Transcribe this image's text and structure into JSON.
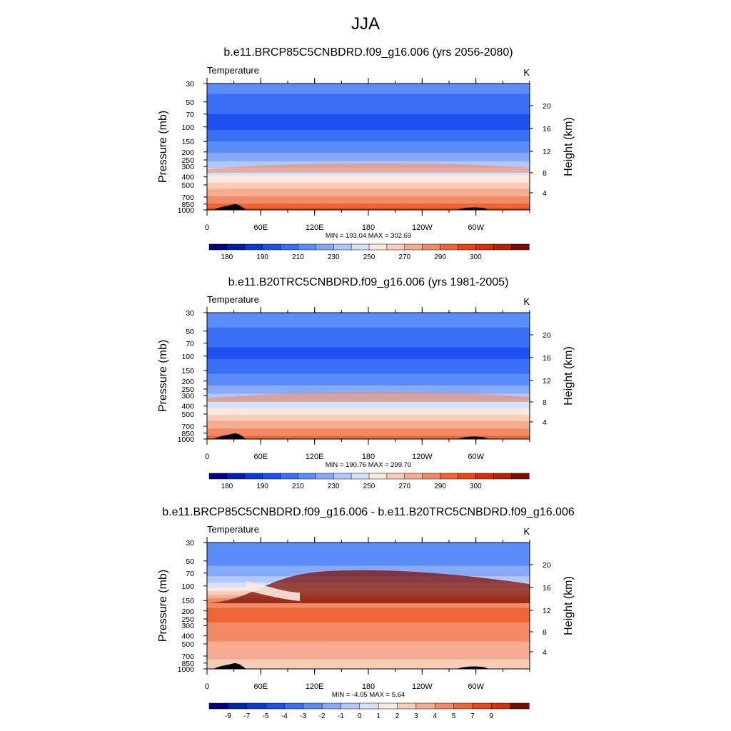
{
  "figure_title": "JJA",
  "chart_data": [
    {
      "type": "heatmap",
      "title": "b.e11.BRCP85C5CNBDRD.f09_g16.006 (yrs 2056-2080)",
      "left_label": "Temperature",
      "units": "K",
      "ylabel": "Pressure (mb)",
      "ylabel_right": "Height (km)",
      "xlabel": "",
      "x_ticks": [
        "0",
        "60E",
        "120E",
        "180",
        "120W",
        "60W"
      ],
      "y_ticks": [
        30,
        50,
        70,
        100,
        150,
        200,
        250,
        300,
        400,
        500,
        700,
        850,
        1000
      ],
      "y_scale": "log",
      "y_range": [
        30,
        1000
      ],
      "height_ticks": [
        20,
        16,
        12,
        8,
        4
      ],
      "stats": "MIN = 193.04  MAX = 302.69",
      "min": 193.04,
      "max": 302.69,
      "colorbar_labels": [
        "180",
        "190",
        "210",
        "230",
        "250",
        "270",
        "290",
        "300"
      ],
      "profile": [
        {
          "p": 30,
          "v": 213
        },
        {
          "p": 50,
          "v": 208
        },
        {
          "p": 70,
          "v": 200
        },
        {
          "p": 100,
          "v": 197
        },
        {
          "p": 150,
          "v": 210
        },
        {
          "p": 200,
          "v": 219
        },
        {
          "p": 250,
          "v": 228
        },
        {
          "p": 300,
          "v": 238
        },
        {
          "p": 400,
          "v": 252
        },
        {
          "p": 500,
          "v": 264
        },
        {
          "p": 700,
          "v": 282
        },
        {
          "p": 850,
          "v": 291
        },
        {
          "p": 1000,
          "v": 298
        }
      ]
    },
    {
      "type": "heatmap",
      "title": "b.e11.B20TRC5CNBDRD.f09_g16.006 (yrs 1981-2005)",
      "left_label": "Temperature",
      "units": "K",
      "ylabel": "Pressure (mb)",
      "ylabel_right": "Height (km)",
      "xlabel": "",
      "x_ticks": [
        "0",
        "60E",
        "120E",
        "180",
        "120W",
        "60W"
      ],
      "y_ticks": [
        30,
        50,
        70,
        100,
        150,
        200,
        250,
        300,
        400,
        500,
        700,
        850,
        1000
      ],
      "y_scale": "log",
      "y_range": [
        30,
        1000
      ],
      "height_ticks": [
        20,
        16,
        12,
        8,
        4
      ],
      "stats": "MIN = 190.76  MAX = 299.70",
      "min": 190.76,
      "max": 299.7,
      "colorbar_labels": [
        "180",
        "190",
        "210",
        "230",
        "250",
        "270",
        "290",
        "300"
      ],
      "profile": [
        {
          "p": 30,
          "v": 214
        },
        {
          "p": 50,
          "v": 209
        },
        {
          "p": 70,
          "v": 201
        },
        {
          "p": 100,
          "v": 198
        },
        {
          "p": 150,
          "v": 208
        },
        {
          "p": 200,
          "v": 216
        },
        {
          "p": 250,
          "v": 224
        },
        {
          "p": 300,
          "v": 233
        },
        {
          "p": 400,
          "v": 247
        },
        {
          "p": 500,
          "v": 259
        },
        {
          "p": 700,
          "v": 277
        },
        {
          "p": 850,
          "v": 287
        },
        {
          "p": 1000,
          "v": 294
        }
      ]
    },
    {
      "type": "heatmap",
      "title": "b.e11.BRCP85C5CNBDRD.f09_g16.006 - b.e11.B20TRC5CNBDRD.f09_g16.006",
      "left_label": "Temperature",
      "units": "K",
      "ylabel": "Pressure (mb)",
      "ylabel_right": "Height (km)",
      "xlabel": "",
      "x_ticks": [
        "0",
        "60E",
        "120E",
        "180",
        "120W",
        "60W"
      ],
      "y_ticks": [
        30,
        50,
        70,
        100,
        150,
        200,
        250,
        300,
        400,
        500,
        700,
        850,
        1000
      ],
      "y_scale": "log",
      "y_range": [
        30,
        1000
      ],
      "height_ticks": [
        20,
        16,
        12,
        8,
        4
      ],
      "stats": "MIN =  -4.05  MAX =   5.64",
      "min": -4.05,
      "max": 5.64,
      "colorbar_labels": [
        "-9",
        "-7",
        "-5",
        "-4",
        "-3",
        "-2",
        "-1",
        "0",
        "1",
        "2",
        "3",
        "4",
        "5",
        "7",
        "9"
      ],
      "profile": [
        {
          "p": 30,
          "v": -2.8
        },
        {
          "p": 50,
          "v": -2.3
        },
        {
          "p": 70,
          "v": -1.6
        },
        {
          "p": 100,
          "v": 0.6
        },
        {
          "p": 150,
          "v": 4.5
        },
        {
          "p": 200,
          "v": 5.2
        },
        {
          "p": 250,
          "v": 5.1
        },
        {
          "p": 300,
          "v": 4.9
        },
        {
          "p": 400,
          "v": 4.4
        },
        {
          "p": 500,
          "v": 3.8
        },
        {
          "p": 700,
          "v": 3.3
        },
        {
          "p": 850,
          "v": 2.6
        },
        {
          "p": 1000,
          "v": 2.2
        }
      ]
    }
  ],
  "colors": {
    "abs_palette": [
      "#000080",
      "#0022a8",
      "#0a3ad0",
      "#1e50ef",
      "#3a6ff5",
      "#5b8cf7",
      "#86aaf8",
      "#b0c8fa",
      "#d6e2fb",
      "#fbe9e0",
      "#f8cdb8",
      "#f5ad91",
      "#f28a66",
      "#ee6638",
      "#e84614",
      "#d83006",
      "#b82206",
      "#7b0d03"
    ],
    "diff_palette": [
      "#000080",
      "#0022a8",
      "#0a3ad0",
      "#1e50ef",
      "#3a6ff5",
      "#5b8cf7",
      "#86aaf8",
      "#b0c8fa",
      "#d6e2fb",
      "#fbe9e0",
      "#f8cdb8",
      "#f5ad91",
      "#f28a66",
      "#ee6638",
      "#e84614",
      "#d83006",
      "#7b0d03"
    ]
  }
}
